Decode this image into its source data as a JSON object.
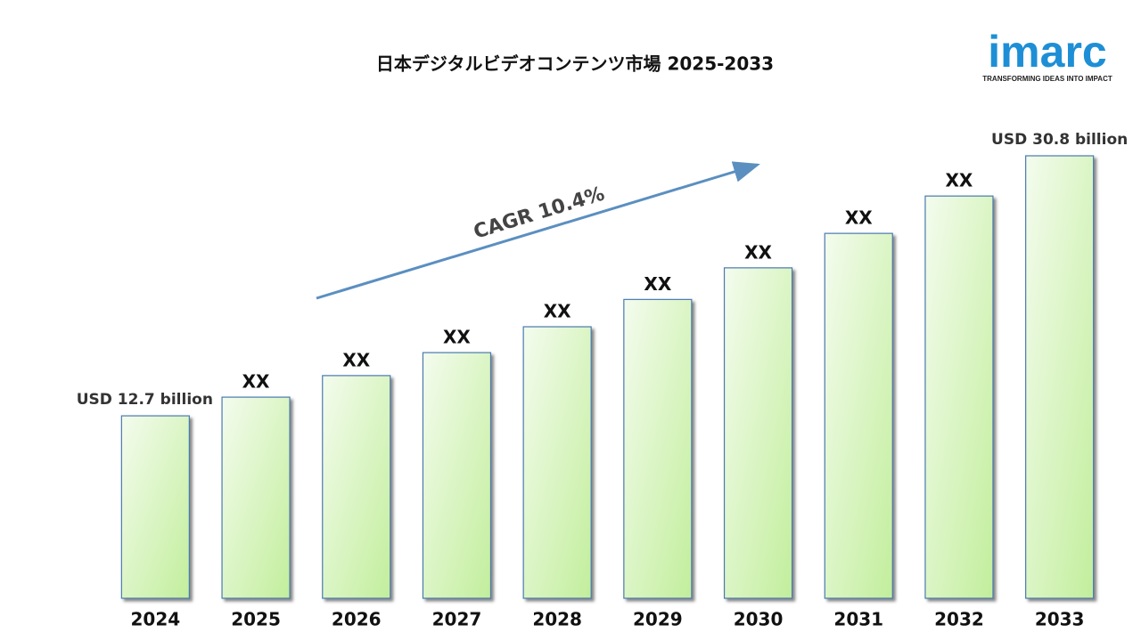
{
  "chart_data": {
    "type": "bar",
    "title": "日本デジタルビデオコンテンツ市場  2025-2033",
    "categories": [
      "2024",
      "2025",
      "2026",
      "2027",
      "2028",
      "2029",
      "2030",
      "2031",
      "2032",
      "2033"
    ],
    "values": [
      12.7,
      14.0,
      15.5,
      17.1,
      18.9,
      20.8,
      23.0,
      25.4,
      28.0,
      30.8
    ],
    "value_labels": [
      "USD 12.7 billion",
      "XX",
      "XX",
      "XX",
      "XX",
      "XX",
      "XX",
      "XX",
      "XX",
      "USD  30.8 billion"
    ],
    "color": "#c6f0a4",
    "annotation": "CAGR  10.4%"
  },
  "logo": {
    "text": "imarc",
    "tagline": "TRANSFORMING IDEAS INTO IMPACT"
  }
}
